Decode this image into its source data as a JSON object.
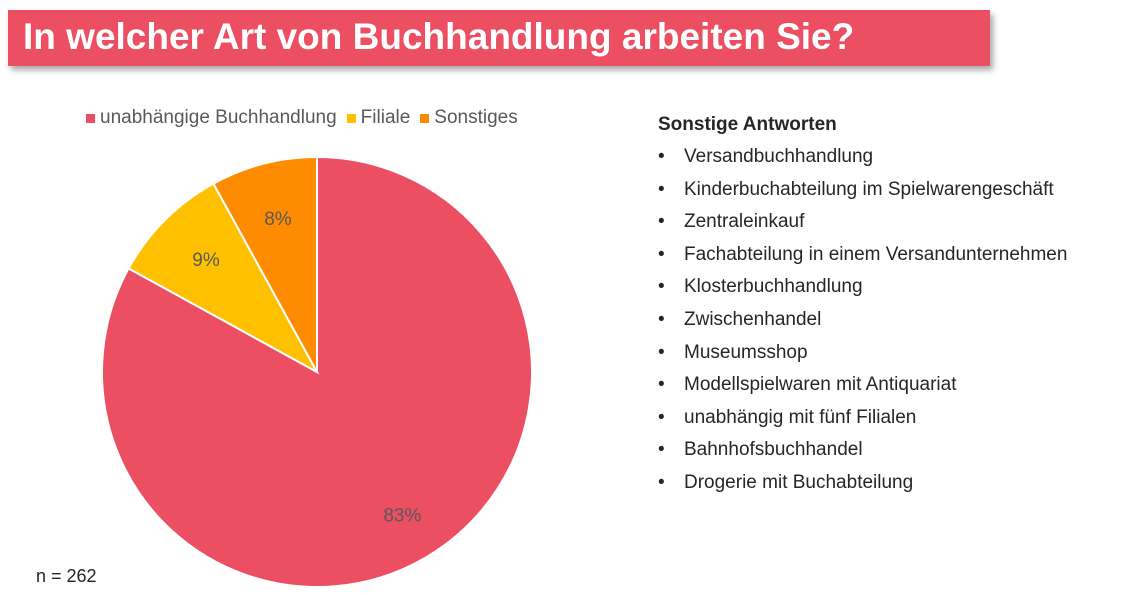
{
  "title": "In welcher Art von Buchhandlung arbeiten Sie?",
  "sample_size": "n = 262",
  "colors": {
    "banner": "#eb4f61",
    "slice_1": "#eb4f61",
    "slice_2": "#ffc000",
    "slice_3": "#ff8c00"
  },
  "chart_data": {
    "type": "pie",
    "categories": [
      "unabhängige Buchhandlung",
      "Filiale",
      "Sonstiges"
    ],
    "values": [
      83,
      9,
      8
    ],
    "data_labels": [
      "83%",
      "9%",
      "8%"
    ],
    "legend_position": "top"
  },
  "others": {
    "heading": "Sonstige Antworten",
    "items": [
      "Versandbuchhandlung",
      "Kinderbuchabteilung im Spielwarengeschäft",
      "Zentraleinkauf",
      "Fachabteilung in einem Versandunternehmen",
      "Klosterbuchhandlung",
      "Zwischenhandel",
      "Museumsshop",
      "Modellspielwaren mit Antiquariat",
      "unabhängig mit fünf Filialen",
      "Bahnhofsbuchhandel",
      "Drogerie mit Buchabteilung"
    ]
  }
}
